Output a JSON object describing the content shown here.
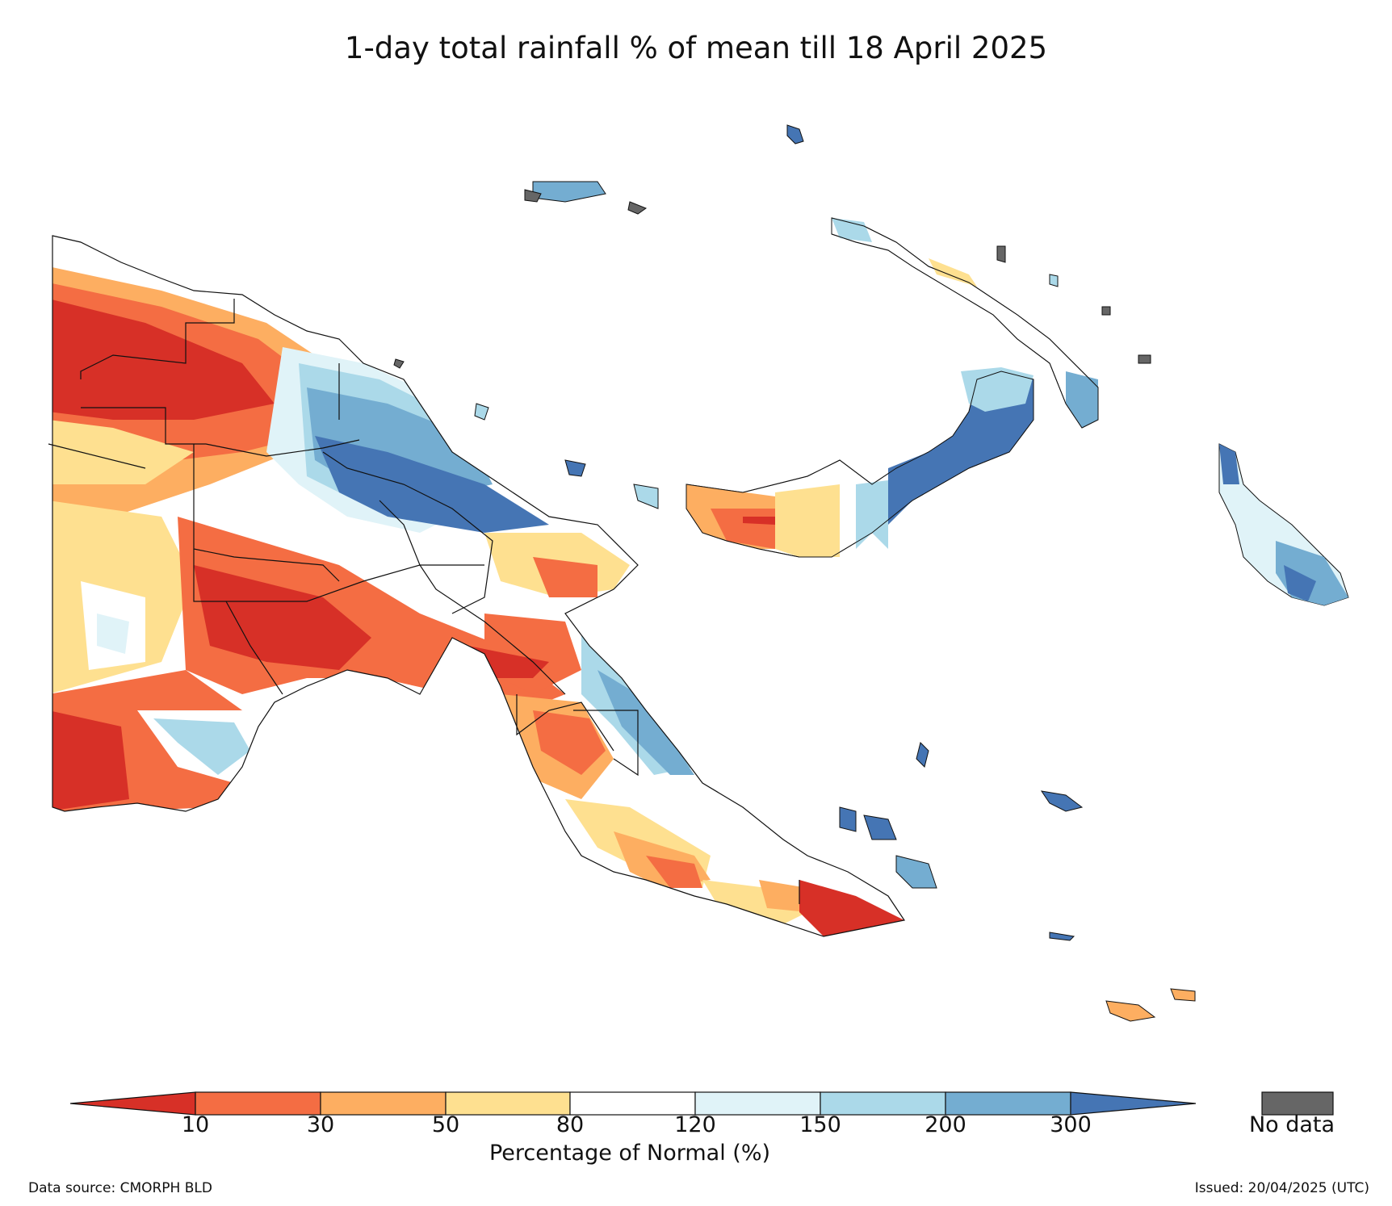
{
  "title": "1-day total rainfall % of mean till 18 April 2025",
  "legend": {
    "label": "Percentage of Normal (%)",
    "ticks": [
      "10",
      "30",
      "50",
      "80",
      "120",
      "150",
      "200",
      "300"
    ],
    "bins": [
      {
        "range": "<10",
        "color": "#d73027"
      },
      {
        "range": "10-30",
        "color": "#f46d43"
      },
      {
        "range": "30-50",
        "color": "#fdae61"
      },
      {
        "range": "50-80",
        "color": "#fee090"
      },
      {
        "range": "80-120",
        "color": "#ffffff"
      },
      {
        "range": "120-150",
        "color": "#e0f3f8"
      },
      {
        "range": "150-200",
        "color": "#abd9e9"
      },
      {
        "range": "200-300",
        "color": "#74add1"
      },
      {
        "range": ">300",
        "color": "#4575b4"
      }
    ],
    "no_data_label": "No data",
    "no_data_color": "#666666"
  },
  "footer": {
    "source": "Data source: CMORPH BLD",
    "issued": "Issued: 20/04/2025 (UTC)"
  }
}
